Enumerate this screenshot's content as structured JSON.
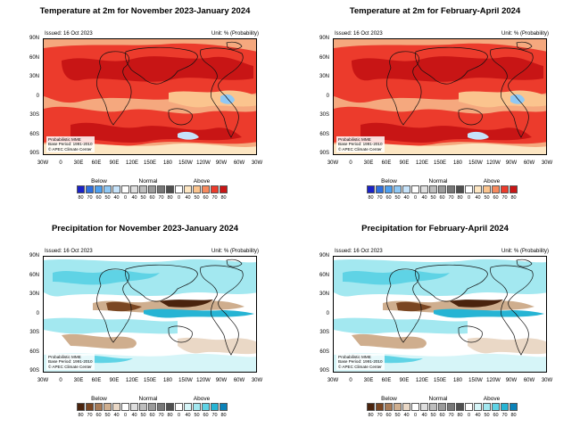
{
  "panels": [
    {
      "title": "Temperature at 2m for November 2023-January 2024",
      "variable": "temperature",
      "issued": "Issued: 16 Oct 2023",
      "unit": "Unit: % (Probability)",
      "footnote": [
        "Probabilistic MME",
        "Base Period: 1991-2010",
        "© APEC Climate Center"
      ]
    },
    {
      "title": "Temperature at 2m for February-April 2024",
      "variable": "temperature",
      "issued": "Issued: 16 Oct 2023",
      "unit": "Unit: % (Probability)",
      "footnote": [
        "Probabilistic MME",
        "Base Period: 1991-2010",
        "© APEC Climate Center"
      ]
    },
    {
      "title": "Precipitation for November 2023-January 2024",
      "variable": "precipitation",
      "issued": "Issued: 16 Oct 2023",
      "unit": "Unit: % (Probability)",
      "footnote": [
        "Probabilistic MME",
        "Base Period: 1991-2010",
        "© APEC Climate Center"
      ]
    },
    {
      "title": "Precipitation for February-April 2024",
      "variable": "precipitation",
      "issued": "Issued: 16 Oct 2023",
      "unit": "Unit: % (Probability)",
      "footnote": [
        "Probabilistic MME",
        "Base Period: 1991-2010",
        "© APEC Climate Center"
      ]
    }
  ],
  "lat_labels": [
    "90N",
    "60N",
    "30N",
    "0",
    "30S",
    "60S",
    "90S"
  ],
  "lon_labels": [
    "30W",
    "0",
    "30E",
    "60E",
    "90E",
    "120E",
    "150E",
    "180",
    "150W",
    "120W",
    "90W",
    "60W",
    "30W"
  ],
  "legend": {
    "categories": [
      "Below",
      "Normal",
      "Above"
    ],
    "numbers": [
      "80",
      "70",
      "60",
      "50",
      "40",
      "0",
      "40",
      "50",
      "60",
      "70",
      "80",
      "0",
      "40",
      "50",
      "60",
      "70",
      "80"
    ],
    "temperature_colors": {
      "below": [
        "#1a22c8",
        "#2f6fe0",
        "#4ea0f0",
        "#8fc8f5",
        "#c6e3fa"
      ],
      "normal": [
        "#ffffff",
        "#dedede",
        "#bdbdbd",
        "#9b9b9b",
        "#777777",
        "#4f4f4f"
      ],
      "above": [
        "#ffffff",
        "#fde6c2",
        "#fbc48e",
        "#f78a5e",
        "#ec3b2c",
        "#c81515"
      ]
    },
    "precipitation_colors": {
      "below": [
        "#4a230d",
        "#7a4622",
        "#a87b57",
        "#cfae8e",
        "#ead8c6"
      ],
      "normal": [
        "#ffffff",
        "#dedede",
        "#bdbdbd",
        "#9b9b9b",
        "#777777",
        "#4f4f4f"
      ],
      "above": [
        "#ffffff",
        "#d6f5f8",
        "#a3e8f0",
        "#5fd3e5",
        "#26b4d4",
        "#0b82b8"
      ]
    }
  }
}
